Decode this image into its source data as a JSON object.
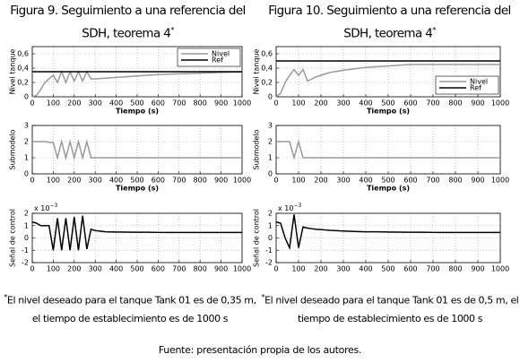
{
  "figures": [
    {
      "title": "Figura 9. Seguimiento a una referencia del SDH, teorema 4",
      "title_mark": "*",
      "note_mark": "*",
      "note": "El nivel deseado para el tanque Tank 01 es de 0,35 m, el tiempo de establecimiento es de 1000 s"
    },
    {
      "title": "Figura 10. Seguimiento a una referencia del SDH, teorema 4",
      "title_mark": "*",
      "note_mark": "*",
      "note": "El nivel deseado para el tanque Tank 01 es de 0,5 m, el tiempo de establecimiento es de 1000 s"
    }
  ],
  "source": "Fuente: presentación propia de los autores.",
  "chart_data": [
    {
      "type": "line",
      "xlabel": "Tiempo (s)",
      "ylabel": "Nivel tanque",
      "legend": "upper right",
      "grid": true,
      "xlim": [
        0,
        1000
      ],
      "xticks": [
        0,
        100,
        200,
        300,
        400,
        500,
        600,
        700,
        800,
        900,
        1000
      ],
      "ylim": [
        0,
        0.7
      ],
      "yticks": [
        0,
        {
          "value": 0.2,
          "label": "0,2"
        },
        {
          "value": 0.4,
          "label": "0,4"
        },
        {
          "value": 0.6,
          "label": "0,6"
        }
      ],
      "x": [
        0,
        20,
        40,
        60,
        80,
        100,
        120,
        140,
        160,
        180,
        200,
        220,
        240,
        260,
        280,
        300,
        350,
        400,
        450,
        500,
        550,
        600,
        650,
        700,
        750,
        800,
        850,
        900,
        950,
        1000
      ],
      "series": [
        {
          "name": "Nivel",
          "color": "#9a9a9a",
          "values": [
            0,
            0.02,
            0.1,
            0.2,
            0.25,
            0.3,
            0.2,
            0.35,
            0.2,
            0.35,
            0.22,
            0.35,
            0.22,
            0.35,
            0.25,
            0.25,
            0.26,
            0.27,
            0.28,
            0.29,
            0.3,
            0.31,
            0.315,
            0.32,
            0.325,
            0.33,
            0.335,
            0.34,
            0.343,
            0.345
          ]
        },
        {
          "name": "Ref",
          "color": "#000000",
          "values": [
            0.35,
            0.35,
            0.35,
            0.35,
            0.35,
            0.35,
            0.35,
            0.35,
            0.35,
            0.35,
            0.35,
            0.35,
            0.35,
            0.35,
            0.35,
            0.35,
            0.35,
            0.35,
            0.35,
            0.35,
            0.35,
            0.35,
            0.35,
            0.35,
            0.35,
            0.35,
            0.35,
            0.35,
            0.35,
            0.35
          ]
        }
      ]
    },
    {
      "type": "line",
      "xlabel": "Tiempo (s)",
      "ylabel": "Submodelo",
      "grid": true,
      "xlim": [
        0,
        1000
      ],
      "xticks": [
        0,
        100,
        200,
        300,
        400,
        500,
        600,
        700,
        800,
        900,
        1000
      ],
      "ylim": [
        0,
        3
      ],
      "yticks": [
        0,
        1,
        2,
        3
      ],
      "x": [
        0,
        20,
        40,
        60,
        80,
        100,
        120,
        140,
        160,
        180,
        200,
        220,
        240,
        260,
        280,
        300,
        350,
        400,
        450,
        500,
        550,
        600,
        650,
        700,
        750,
        800,
        850,
        900,
        950,
        1000
      ],
      "series": [
        {
          "color": "#9a9a9a",
          "values": [
            2,
            2,
            2,
            2,
            1.95,
            1.95,
            1,
            2,
            1,
            2,
            1,
            2,
            1,
            2,
            1,
            1,
            1,
            1,
            1,
            1,
            1,
            1,
            1,
            1,
            1,
            1,
            1,
            1,
            1,
            1
          ]
        }
      ]
    },
    {
      "type": "line",
      "ylabel": "Señal de control",
      "y_multiplier": "x 10",
      "y_multiplier_exp": "−3",
      "grid": true,
      "xlim": [
        0,
        1000
      ],
      "xticks": [
        0,
        100,
        200,
        300,
        400,
        500,
        600,
        700,
        800,
        900,
        1000
      ],
      "ylim": [
        -2,
        2
      ],
      "yticks": [
        -2,
        -1,
        0,
        1,
        2
      ],
      "x": [
        0,
        20,
        40,
        60,
        80,
        100,
        120,
        140,
        160,
        180,
        200,
        220,
        240,
        260,
        280,
        300,
        350,
        400,
        450,
        500,
        550,
        600,
        650,
        700,
        750,
        800,
        850,
        900,
        950,
        1000
      ],
      "series": [
        {
          "color": "#000000",
          "values": [
            1.3,
            1.2,
            1,
            1,
            1,
            -1,
            1.6,
            -1,
            1.6,
            -1,
            1.7,
            -1,
            1.8,
            -0.9,
            0.7,
            0.6,
            0.5,
            0.48,
            0.47,
            0.46,
            0.46,
            0.45,
            0.45,
            0.45,
            0.45,
            0.45,
            0.45,
            0.45,
            0.45,
            0.45
          ]
        }
      ]
    },
    {
      "type": "line",
      "xlabel": "Tiempo (s)",
      "ylabel": "Nivel tanque",
      "legend": "lower right",
      "grid": true,
      "xlim": [
        0,
        1000
      ],
      "xticks": [
        0,
        100,
        200,
        300,
        400,
        500,
        600,
        700,
        800,
        900,
        1000
      ],
      "ylim": [
        0,
        0.7
      ],
      "yticks": [
        0,
        {
          "value": 0.2,
          "label": "0,2"
        },
        {
          "value": 0.4,
          "label": "0,4"
        },
        {
          "value": 0.6,
          "label": "0,6"
        }
      ],
      "x": [
        0,
        20,
        40,
        60,
        80,
        100,
        120,
        140,
        160,
        180,
        200,
        220,
        240,
        260,
        280,
        300,
        350,
        400,
        450,
        500,
        550,
        600,
        650,
        700,
        750,
        800,
        850,
        900,
        950,
        1000
      ],
      "series": [
        {
          "name": "Nivel",
          "color": "#9a9a9a",
          "values": [
            0,
            0.05,
            0.2,
            0.3,
            0.38,
            0.3,
            0.38,
            0.22,
            0.25,
            0.28,
            0.3,
            0.32,
            0.34,
            0.35,
            0.36,
            0.37,
            0.39,
            0.41,
            0.42,
            0.43,
            0.44,
            0.45,
            0.45,
            0.45,
            0.45,
            0.45,
            0.45,
            0.45,
            0.45,
            0.45
          ]
        },
        {
          "name": "Ref",
          "color": "#000000",
          "values": [
            0.5,
            0.5,
            0.5,
            0.5,
            0.5,
            0.5,
            0.5,
            0.5,
            0.5,
            0.5,
            0.5,
            0.5,
            0.5,
            0.5,
            0.5,
            0.5,
            0.5,
            0.5,
            0.5,
            0.5,
            0.5,
            0.5,
            0.5,
            0.5,
            0.5,
            0.5,
            0.5,
            0.5,
            0.5,
            0.5
          ]
        }
      ]
    },
    {
      "type": "line",
      "xlabel": "Tiempo (s)",
      "ylabel": "Submodelo",
      "grid": true,
      "xlim": [
        0,
        1000
      ],
      "xticks": [
        0,
        100,
        200,
        300,
        400,
        500,
        600,
        700,
        800,
        900,
        1000
      ],
      "ylim": [
        0,
        3
      ],
      "yticks": [
        0,
        1,
        2,
        3
      ],
      "x": [
        0,
        20,
        40,
        60,
        80,
        100,
        120,
        140,
        160,
        180,
        200,
        220,
        240,
        260,
        280,
        300,
        350,
        400,
        450,
        500,
        550,
        600,
        650,
        700,
        750,
        800,
        850,
        900,
        950,
        1000
      ],
      "series": [
        {
          "color": "#9a9a9a",
          "values": [
            2,
            2,
            2,
            2,
            1,
            2,
            1,
            1,
            1,
            1,
            1,
            1,
            1,
            1,
            1,
            1,
            1,
            1,
            1,
            1,
            1,
            1,
            1,
            1,
            1,
            1,
            1,
            1,
            1,
            1
          ]
        }
      ]
    },
    {
      "type": "line",
      "ylabel": "Señal de control",
      "y_multiplier": "x 10",
      "y_multiplier_exp": "−3",
      "grid": true,
      "xlim": [
        0,
        1000
      ],
      "xticks": [
        0,
        100,
        200,
        300,
        400,
        500,
        600,
        700,
        800,
        900,
        1000
      ],
      "ylim": [
        -2,
        2
      ],
      "yticks": [
        -2,
        -1,
        0,
        1,
        2
      ],
      "x": [
        0,
        20,
        40,
        60,
        80,
        100,
        120,
        140,
        160,
        180,
        200,
        220,
        240,
        260,
        280,
        300,
        350,
        400,
        450,
        500,
        550,
        600,
        650,
        700,
        750,
        800,
        850,
        900,
        950,
        1000
      ],
      "series": [
        {
          "color": "#000000",
          "values": [
            1.3,
            1.2,
            0,
            -0.8,
            1.9,
            -0.8,
            0.9,
            0.8,
            0.75,
            0.7,
            0.68,
            0.65,
            0.62,
            0.6,
            0.58,
            0.56,
            0.53,
            0.5,
            0.5,
            0.48,
            0.47,
            0.46,
            0.46,
            0.45,
            0.45,
            0.45,
            0.45,
            0.45,
            0.45,
            0.45
          ]
        }
      ]
    }
  ]
}
